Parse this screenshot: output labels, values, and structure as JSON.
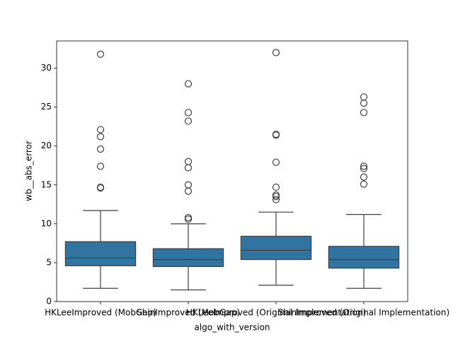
{
  "chart_data": {
    "type": "box",
    "x_label": "algo_with_version",
    "y_label": "wb__abs_error",
    "categories": [
      "HKLeeImproved (MobGap)",
      "ShinImproved (MobGap)",
      "HKLeeImproved (Original Implementation)",
      "ShinImproved (Original Implementation)"
    ],
    "color": "#3274a1",
    "ylim": [
      0,
      33.5
    ],
    "yticks": [
      0,
      5,
      10,
      15,
      20,
      25,
      30
    ],
    "boxes": [
      {
        "whisker_low": 1.7,
        "q1": 4.6,
        "median": 5.6,
        "q3": 7.7,
        "whisker_high": 11.7,
        "outliers": [
          14.6,
          14.7,
          17.4,
          19.6,
          21.2,
          22.1,
          31.8
        ]
      },
      {
        "whisker_low": 1.5,
        "q1": 4.5,
        "median": 5.4,
        "q3": 6.8,
        "whisker_high": 10.0,
        "outliers": [
          10.6,
          10.8,
          14.2,
          15.0,
          17.2,
          18.0,
          23.2,
          24.3,
          28.0
        ]
      },
      {
        "whisker_low": 2.1,
        "q1": 5.4,
        "median": 6.6,
        "q3": 8.4,
        "whisker_high": 11.5,
        "outliers": [
          13.1,
          13.5,
          13.7,
          14.7,
          17.9,
          21.4,
          21.5,
          32.0
        ]
      },
      {
        "whisker_low": 1.7,
        "q1": 4.3,
        "median": 5.4,
        "q3": 7.1,
        "whisker_high": 11.2,
        "outliers": [
          15.1,
          16.0,
          17.1,
          17.4,
          24.3,
          25.5,
          26.3
        ]
      }
    ]
  }
}
